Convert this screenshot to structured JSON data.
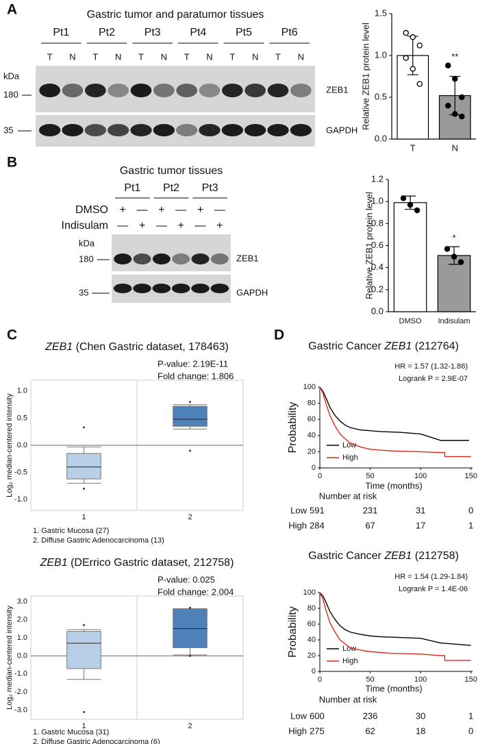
{
  "panel_labels": [
    "A",
    "B",
    "C",
    "D"
  ],
  "blot_a": {
    "title": "Gastric tumor and paratumor tissues",
    "patients": [
      "Pt1",
      "Pt2",
      "Pt3",
      "Pt4",
      "Pt5",
      "Pt6"
    ],
    "lanes": [
      "T",
      "N"
    ],
    "kda": "kDa",
    "markers": [
      "180",
      "35"
    ],
    "proteins": [
      "ZEB1",
      "GAPDH"
    ]
  },
  "blot_b": {
    "title": "Gastric tumor tissues",
    "patients": [
      "Pt1",
      "Pt2",
      "Pt3"
    ],
    "treatments": [
      "DMSO",
      "Indisulam"
    ],
    "signs": [
      "+",
      "—"
    ],
    "kda": "kDa",
    "markers": [
      "180",
      "35"
    ],
    "proteins": [
      "ZEB1",
      "GAPDH"
    ]
  },
  "chart_data": [
    {
      "type": "bar",
      "ylabel": "Relative ZEB1 protein level",
      "categories": [
        "T",
        "N"
      ],
      "values": [
        1.0,
        0.52
      ],
      "errors": [
        0.23,
        0.23
      ],
      "points": [
        [
          1.27,
          1.22,
          1.12,
          0.97,
          0.84,
          0.66
        ],
        [
          0.88,
          0.72,
          0.5,
          0.4,
          0.3,
          0.27
        ]
      ],
      "colors": [
        "#ffffff",
        "#9a9a9a"
      ],
      "point_fill": [
        "#ffffff",
        "#000000"
      ],
      "significance": {
        "category": 1,
        "label": "**"
      },
      "ylim": [
        0,
        1.5
      ],
      "yticks": [
        {
          "value": 0,
          "label": "0.0"
        },
        {
          "value": 0.5,
          "label": "0.5"
        },
        {
          "value": 1,
          "label": "1.0"
        },
        {
          "value": 1.5,
          "label": "1.5"
        }
      ]
    },
    {
      "type": "bar",
      "ylabel": "Relative ZEB1 protein level",
      "categories": [
        "DMSO",
        "Indisulam"
      ],
      "values": [
        0.99,
        0.51
      ],
      "errors": [
        0.06,
        0.08
      ],
      "points": [
        [
          1.03,
          0.97,
          0.92
        ],
        [
          0.57,
          0.5,
          0.45
        ]
      ],
      "colors": [
        "#ffffff",
        "#9a9a9a"
      ],
      "point_fill": [
        "#000000",
        "#000000"
      ],
      "significance": {
        "category": 1,
        "label": "*"
      },
      "ylim": [
        0,
        1.2
      ],
      "yticks": [
        {
          "value": 0,
          "label": "0.0"
        },
        {
          "value": 0.2,
          "label": "0.2"
        },
        {
          "value": 0.4,
          "label": "0.4"
        },
        {
          "value": 0.6,
          "label": "0.6"
        },
        {
          "value": 0.8,
          "label": "0.8"
        },
        {
          "value": 1,
          "label": "1.0"
        },
        {
          "value": 1.2,
          "label": "1.2"
        }
      ]
    },
    {
      "type": "box",
      "title_gene": "ZEB1",
      "title": " (Chen Gastric dataset, 178463)",
      "stats": [
        "P-value: 2.19E-11",
        "Fold change: 1.806"
      ],
      "ylabel": "Log₂ median-centered intensity",
      "categories": [
        "1",
        "2"
      ],
      "boxes": [
        {
          "whislo": -0.7,
          "q1": -0.62,
          "med": -0.4,
          "q3": -0.15,
          "whishi": -0.03,
          "outliers": [
            0.33,
            -0.8
          ]
        },
        {
          "whislo": 0.3,
          "q1": 0.35,
          "med": 0.48,
          "q3": 0.72,
          "whishi": 0.75,
          "outliers": [
            0.8,
            -0.1
          ]
        }
      ],
      "colors": [
        "#b9cfe5",
        "#4f81b9"
      ],
      "legend": [
        "1. Gastric Mucosa (27)",
        "2. Diffuse Gastric Adenocarcinoma (13)"
      ],
      "ylim": [
        -1.2,
        1.2
      ],
      "yticks": [
        {
          "value": 1,
          "label": "1.0"
        },
        {
          "value": 0.5,
          "label": "0.5"
        },
        {
          "value": 0,
          "label": "0.0"
        },
        {
          "value": -0.5,
          "label": "-0.5"
        },
        {
          "value": -1,
          "label": "-1.0"
        }
      ]
    },
    {
      "type": "box",
      "title_gene": "ZEB1",
      "title": " (DErrico Gastric dataset, 212758)",
      "stats": [
        "P-value: 0.025",
        "Fold change: 2.004"
      ],
      "ylabel": "Log₂ median-centered intensity",
      "categories": [
        "1",
        "2"
      ],
      "boxes": [
        {
          "whislo": -1.3,
          "q1": -0.7,
          "med": 0.7,
          "q3": 1.35,
          "whishi": 1.45,
          "outliers": [
            1.7,
            -3.1
          ]
        },
        {
          "whislo": 0.05,
          "q1": 0.45,
          "med": 1.5,
          "q3": 2.6,
          "whishi": 2.6,
          "outliers": [
            2.65,
            0.0
          ]
        }
      ],
      "colors": [
        "#b9cfe5",
        "#4f81b9"
      ],
      "legend": [
        "1. Gastric Mucosa (31)",
        "2. Diffuse Gastric Adenocarcinoma (6)"
      ],
      "ylim": [
        -3.5,
        3.3
      ],
      "yticks": [
        {
          "value": 3,
          "label": "3.0"
        },
        {
          "value": 2,
          "label": "2.0"
        },
        {
          "value": 1,
          "label": "1.0"
        },
        {
          "value": 0,
          "label": "0.0"
        },
        {
          "value": -1,
          "label": "-1.0"
        },
        {
          "value": -2,
          "label": "-2.0"
        },
        {
          "value": -3,
          "label": "-3.0"
        }
      ]
    },
    {
      "type": "km",
      "title_prefix": "Gastric Cancer ",
      "title_gene": "ZEB1",
      "title_suffix": " (212764)",
      "annotations": [
        "HR = 1.57 (1.32-1.86)",
        "Logrank P = 2.9E-07"
      ],
      "xlabel": "Time (months)",
      "ylabel": "Probability",
      "series": [
        {
          "name": "Low",
          "color": "#000000",
          "x": [
            0,
            3,
            6,
            10,
            15,
            20,
            25,
            30,
            40,
            50,
            60,
            80,
            100,
            110,
            120,
            130,
            148
          ],
          "values": [
            100,
            95,
            87,
            75,
            65,
            58,
            53,
            50,
            47,
            46,
            45,
            44,
            42,
            38,
            34,
            34,
            34
          ]
        },
        {
          "name": "High",
          "color": "#e0261b",
          "x": [
            0,
            3,
            6,
            10,
            15,
            20,
            25,
            30,
            40,
            50,
            70,
            100,
            120,
            124,
            124,
            150
          ],
          "values": [
            100,
            93,
            80,
            65,
            52,
            42,
            36,
            31,
            26,
            23,
            21,
            20,
            19,
            19,
            14,
            14
          ]
        }
      ],
      "risk_title": "Number at risk",
      "risk": [
        [
          591,
          231,
          31,
          0
        ],
        [
          284,
          67,
          17,
          1
        ]
      ],
      "xlim": [
        0,
        155
      ],
      "xticks": [
        0,
        50,
        100,
        150
      ],
      "ylim": [
        0,
        100
      ],
      "yticks": [
        0,
        20,
        40,
        60,
        80,
        100
      ]
    },
    {
      "type": "km",
      "title_prefix": "Gastric Cancer ",
      "title_gene": "ZEB1",
      "title_suffix": " (212758)",
      "annotations": [
        "HR = 1.54 (1.29-1.84)",
        "Logrank P = 1.4E-06"
      ],
      "xlabel": "Time (months)",
      "ylabel": "Probability",
      "series": [
        {
          "name": "Low",
          "color": "#000000",
          "x": [
            0,
            3,
            6,
            10,
            15,
            20,
            25,
            30,
            40,
            50,
            60,
            80,
            100,
            120,
            150
          ],
          "values": [
            100,
            96,
            88,
            76,
            66,
            58,
            53,
            50,
            47,
            45,
            44,
            43,
            42,
            36,
            33
          ]
        },
        {
          "name": "High",
          "color": "#e0261b",
          "x": [
            0,
            3,
            6,
            10,
            15,
            20,
            25,
            30,
            40,
            50,
            70,
            100,
            120,
            124,
            124,
            150
          ],
          "values": [
            100,
            92,
            78,
            62,
            50,
            40,
            35,
            30,
            27,
            25,
            23,
            22,
            20,
            20,
            14,
            14
          ]
        }
      ],
      "risk_title": "Number at risk",
      "risk": [
        [
          600,
          236,
          30,
          1
        ],
        [
          275,
          62,
          18,
          0
        ]
      ],
      "xlim": [
        0,
        155
      ],
      "xticks": [
        0,
        50,
        100,
        150
      ],
      "ylim": [
        0,
        100
      ],
      "yticks": [
        0,
        20,
        40,
        60,
        80,
        100
      ]
    }
  ]
}
